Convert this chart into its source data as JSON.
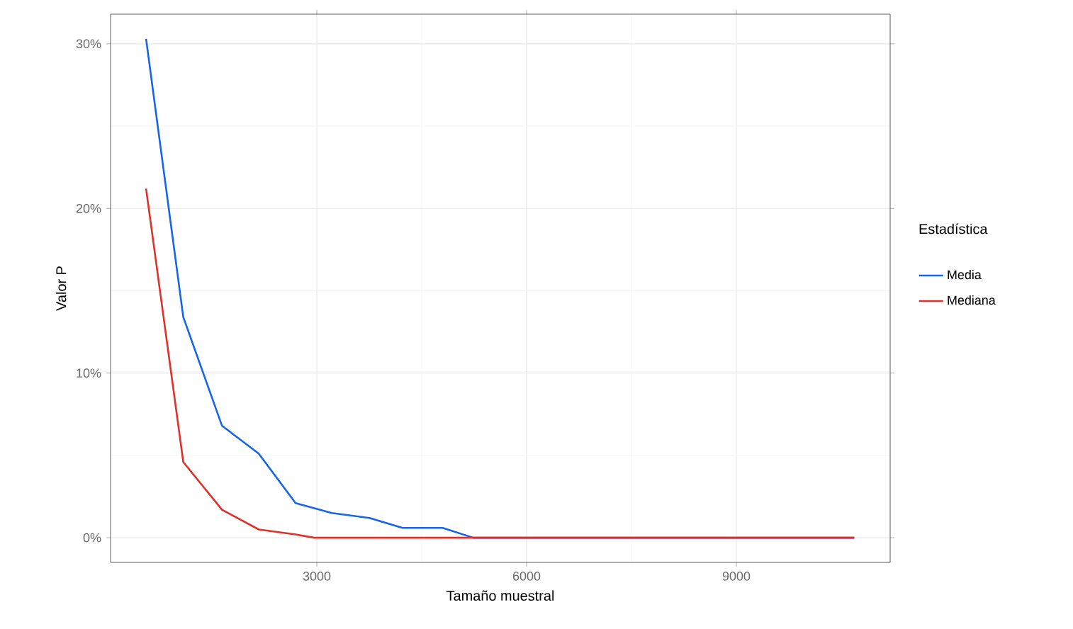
{
  "chart_data": {
    "type": "line",
    "xlabel": "Tamaño muestral",
    "ylabel": "Valor P",
    "legend_title": "Estadística",
    "series": [
      {
        "name": "Media",
        "color": "#1565e8",
        "x": [
          558,
          1090,
          1644,
          2170,
          2696,
          3214,
          3754,
          4225,
          4800,
          5237,
          10686
        ],
        "values": [
          30.3,
          13.4,
          6.8,
          5.1,
          2.1,
          1.5,
          1.2,
          0.6,
          0.6,
          0,
          0
        ]
      },
      {
        "name": "Mediana",
        "color": "#e0302a",
        "x": [
          558,
          1090,
          1644,
          2170,
          2696,
          2960,
          10686
        ],
        "values": [
          21.2,
          4.6,
          1.7,
          0.5,
          0.2,
          0,
          0
        ]
      }
    ],
    "xlim": [
      50,
      11200
    ],
    "ylim": [
      -1.5,
      31.8
    ],
    "xticks": [
      3000,
      6000,
      9000
    ],
    "yticks": [
      {
        "value": 0,
        "label": "0%"
      },
      {
        "value": 10,
        "label": "10%"
      },
      {
        "value": 20,
        "label": "20%"
      },
      {
        "value": 30,
        "label": "30%"
      }
    ],
    "grid": true,
    "legend": "right",
    "line_style": "solid",
    "marker": "none"
  }
}
